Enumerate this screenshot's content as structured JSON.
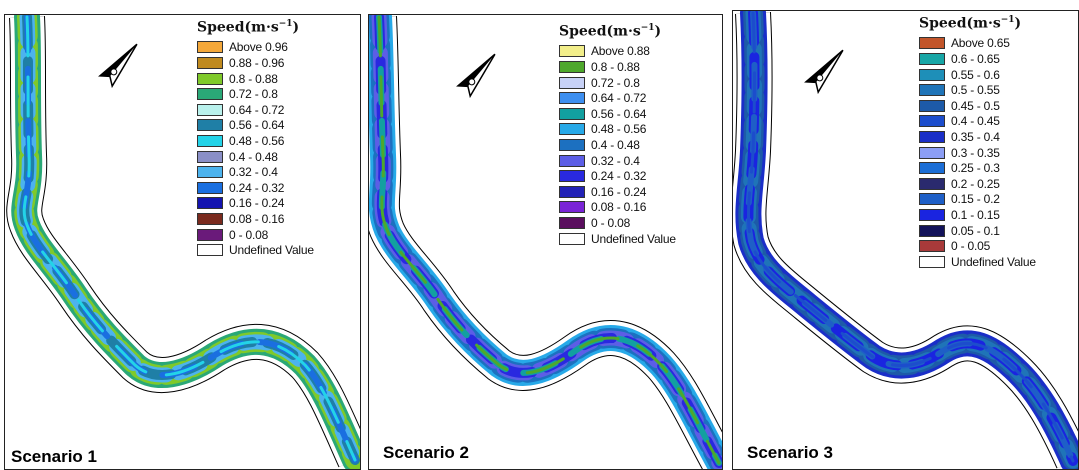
{
  "panels": [
    {
      "scenario_label": "Scenario 1",
      "legend_title": "Speed(m·s",
      "legend_exponent": "−1",
      "legend_title_close": ")",
      "legend_items": [
        {
          "label": "Above 0.96",
          "color": "#f4a83a"
        },
        {
          "label": "0.88 - 0.96",
          "color": "#c08a1e"
        },
        {
          "label": "0.8 - 0.88",
          "color": "#7fc92a"
        },
        {
          "label": "0.72 - 0.8",
          "color": "#2aa877"
        },
        {
          "label": "0.64 - 0.72",
          "color": "#b9f1ec"
        },
        {
          "label": "0.56 - 0.64",
          "color": "#1f7fa6"
        },
        {
          "label": "0.48 - 0.56",
          "color": "#23d3e8"
        },
        {
          "label": "0.4 - 0.48",
          "color": "#8a8fc7"
        },
        {
          "label": "0.32 - 0.4",
          "color": "#4cb3ee"
        },
        {
          "label": "0.24 - 0.32",
          "color": "#1a6fe0"
        },
        {
          "label": "0.16 - 0.24",
          "color": "#1414b0"
        },
        {
          "label": "0.08 - 0.16",
          "color": "#7a2a1e"
        },
        {
          "label": "0 - 0.08",
          "color": "#6a1a7a"
        },
        {
          "label": "Undefined Value",
          "color": "#ffffff"
        }
      ]
    },
    {
      "scenario_label": "Scenario 2",
      "legend_title": "Speed(m·s",
      "legend_exponent": "−1",
      "legend_title_close": ")",
      "legend_items": [
        {
          "label": "Above 0.88",
          "color": "#f2ee8a"
        },
        {
          "label": "0.8 - 0.88",
          "color": "#4ea82c"
        },
        {
          "label": "0.72 - 0.8",
          "color": "#c8d2f7"
        },
        {
          "label": "0.64 - 0.72",
          "color": "#3d8ff0"
        },
        {
          "label": "0.56 - 0.64",
          "color": "#12a0a0"
        },
        {
          "label": "0.48 - 0.56",
          "color": "#27a9e8"
        },
        {
          "label": "0.4 - 0.48",
          "color": "#1c70c0"
        },
        {
          "label": "0.32 - 0.4",
          "color": "#5c5ee6"
        },
        {
          "label": "0.24 - 0.32",
          "color": "#2929e0"
        },
        {
          "label": "0.16 - 0.24",
          "color": "#2222b6"
        },
        {
          "label": "0.08 - 0.16",
          "color": "#7a24d6"
        },
        {
          "label": "0 - 0.08",
          "color": "#5a0e5e"
        },
        {
          "label": "Undefined Value",
          "color": "#ffffff"
        }
      ]
    },
    {
      "scenario_label": "Scenario 3",
      "legend_title": "Speed(m·s",
      "legend_exponent": "−1",
      "legend_title_close": ")",
      "legend_items": [
        {
          "label": "Above 0.65",
          "color": "#c2552a"
        },
        {
          "label": "0.6 - 0.65",
          "color": "#17a6a6"
        },
        {
          "label": "0.55 - 0.6",
          "color": "#1e8fb8"
        },
        {
          "label": "0.5 - 0.55",
          "color": "#1f74b8"
        },
        {
          "label": "0.45 - 0.5",
          "color": "#1d5aa8"
        },
        {
          "label": "0.4 - 0.45",
          "color": "#1c4dcc"
        },
        {
          "label": "0.35 - 0.4",
          "color": "#1a2ec8"
        },
        {
          "label": "0.3 - 0.35",
          "color": "#8c9ef5"
        },
        {
          "label": "0.25 - 0.3",
          "color": "#1b6ed6"
        },
        {
          "label": "0.2 - 0.25",
          "color": "#2a2a6e"
        },
        {
          "label": "0.15 - 0.2",
          "color": "#1e5fc7"
        },
        {
          "label": "0.1 - 0.15",
          "color": "#1a24e0"
        },
        {
          "label": "0.05 - 0.1",
          "color": "#12125a"
        },
        {
          "label": "0 - 0.05",
          "color": "#a83a3a"
        },
        {
          "label": "Undefined Value",
          "color": "#ffffff"
        }
      ]
    }
  ],
  "river_colors": {
    "scenario_1": [
      "#2aa877",
      "#7fc92a",
      "#4cb3ee",
      "#1f7fa6",
      "#1a6fe0",
      "#23d3e8"
    ],
    "scenario_2": [
      "#27a9e8",
      "#1c70c0",
      "#5c5ee6",
      "#2929e0",
      "#12a0a0",
      "#4ea82c"
    ],
    "scenario_3": [
      "#1a2ec8",
      "#1d5aa8",
      "#1f74b8",
      "#1a24e0",
      "#1e5fc7",
      "#1c4dcc"
    ]
  },
  "north_arrow_icon": "north-arrow-icon"
}
